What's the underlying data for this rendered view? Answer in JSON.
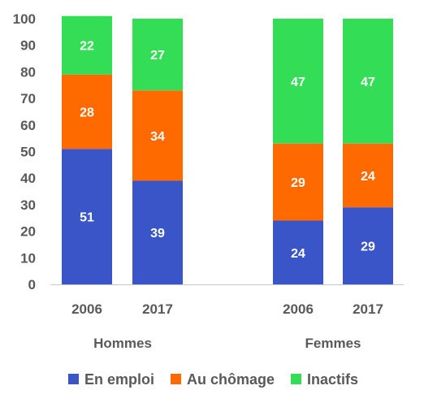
{
  "chart_data": {
    "type": "bar",
    "stacked": true,
    "groups": [
      {
        "label": "Hommes",
        "categories": [
          "2006",
          "2017"
        ]
      },
      {
        "label": "Femmes",
        "categories": [
          "2006",
          "2017"
        ]
      }
    ],
    "categories": [
      "2006",
      "2017",
      "2006",
      "2017"
    ],
    "series": [
      {
        "name": "En emploi",
        "color": "#3a55c8",
        "values": [
          51,
          39,
          24,
          29
        ]
      },
      {
        "name": "Au chômage",
        "color": "#ff6a00",
        "values": [
          28,
          34,
          29,
          24
        ]
      },
      {
        "name": "Inactifs",
        "color": "#33dd55",
        "values": [
          22,
          27,
          47,
          47
        ]
      }
    ],
    "value_labels": [
      [
        "51",
        "39",
        "24",
        "29"
      ],
      [
        "28",
        "34",
        "29",
        "24"
      ],
      [
        "22",
        "27",
        "47",
        "47"
      ]
    ],
    "yticks": [
      "0",
      "10",
      "20",
      "30",
      "40",
      "50",
      "60",
      "70",
      "80",
      "90",
      "100"
    ],
    "ylim": [
      0,
      100
    ],
    "title": "",
    "xlabel": "",
    "ylabel": "",
    "grid": false,
    "legend_position": "bottom"
  }
}
